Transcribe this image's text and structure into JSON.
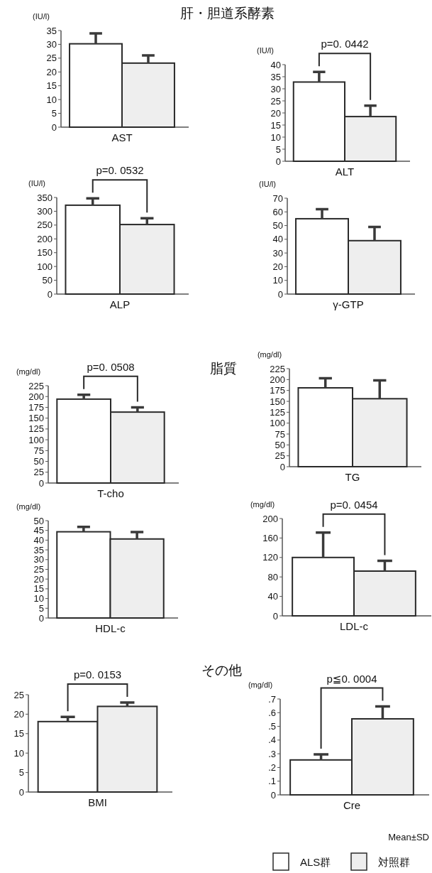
{
  "chart_data": [
    {
      "type": "bar",
      "title": "肝・胆道系酵素",
      "ylabel": "(IU/l)",
      "categories": [
        "AST"
      ],
      "ylim": [
        0,
        35
      ],
      "yticks": [
        0,
        5,
        10,
        15,
        20,
        25,
        30,
        35
      ],
      "series": [
        {
          "color": "#ffffff",
          "values": [
            30.2
          ],
          "errors": [
            3.8
          ]
        },
        {
          "color": "#eeeeee",
          "values": [
            23.2
          ],
          "errors": [
            2.8
          ]
        }
      ]
    },
    {
      "type": "bar",
      "ylabel": "(IU/l)",
      "categories": [
        "ALT"
      ],
      "ylim": [
        0,
        40
      ],
      "yticks": [
        0,
        5,
        10,
        15,
        20,
        25,
        30,
        35,
        40
      ],
      "annotations": [
        "p=0. 0442"
      ],
      "series": [
        {
          "color": "#ffffff",
          "values": [
            32.8
          ],
          "errors": [
            4.2
          ]
        },
        {
          "color": "#eeeeee",
          "values": [
            18.5
          ],
          "errors": [
            4.5
          ]
        }
      ]
    },
    {
      "type": "bar",
      "ylabel": "(IU/l)",
      "categories": [
        "ALP"
      ],
      "ylim": [
        0,
        350
      ],
      "yticks": [
        0,
        50,
        100,
        150,
        200,
        250,
        300,
        350
      ],
      "annotations": [
        "p=0. 0532"
      ],
      "series": [
        {
          "color": "#ffffff",
          "values": [
            322
          ],
          "errors": [
            25
          ]
        },
        {
          "color": "#eeeeee",
          "values": [
            252
          ],
          "errors": [
            23
          ]
        }
      ]
    },
    {
      "type": "bar",
      "ylabel": "(IU/l)",
      "categories": [
        "γ-GTP"
      ],
      "ylim": [
        0,
        70
      ],
      "yticks": [
        0,
        10,
        20,
        30,
        40,
        50,
        60,
        70
      ],
      "series": [
        {
          "color": "#ffffff",
          "values": [
            55
          ],
          "errors": [
            7
          ]
        },
        {
          "color": "#eeeeee",
          "values": [
            39
          ],
          "errors": [
            10
          ]
        }
      ]
    },
    {
      "type": "bar",
      "ylabel": "(mg/dl)",
      "categories": [
        "T-cho"
      ],
      "ylim": [
        0,
        225
      ],
      "yticks": [
        0,
        25,
        50,
        75,
        100,
        125,
        150,
        175,
        200,
        225
      ],
      "annotations": [
        "p=0. 0508"
      ],
      "series": [
        {
          "color": "#ffffff",
          "values": [
            194
          ],
          "errors": [
            10
          ]
        },
        {
          "color": "#eeeeee",
          "values": [
            164
          ],
          "errors": [
            11
          ]
        }
      ]
    },
    {
      "type": "bar",
      "title": "脂質",
      "ylabel": "(mg/dl)",
      "categories": [
        "TG"
      ],
      "ylim": [
        0,
        225
      ],
      "yticks": [
        0,
        25,
        50,
        75,
        100,
        125,
        150,
        175,
        200,
        225
      ],
      "series": [
        {
          "color": "#ffffff",
          "values": [
            181
          ],
          "errors": [
            22
          ]
        },
        {
          "color": "#eeeeee",
          "values": [
            156
          ],
          "errors": [
            42
          ]
        }
      ]
    },
    {
      "type": "bar",
      "ylabel": "(mg/dl)",
      "categories": [
        "HDL-c"
      ],
      "ylim": [
        0,
        50
      ],
      "yticks": [
        0,
        5,
        10,
        15,
        20,
        25,
        30,
        35,
        40,
        45,
        50
      ],
      "series": [
        {
          "color": "#ffffff",
          "values": [
            44.3
          ],
          "errors": [
            2.5
          ]
        },
        {
          "color": "#eeeeee",
          "values": [
            40.6
          ],
          "errors": [
            3.6
          ]
        }
      ]
    },
    {
      "type": "bar",
      "ylabel": "(mg/dl)",
      "categories": [
        "LDL-c"
      ],
      "ylim": [
        0,
        200
      ],
      "yticks": [
        0,
        40,
        80,
        120,
        160,
        200
      ],
      "annotations": [
        "p=0. 0454"
      ],
      "series": [
        {
          "color": "#ffffff",
          "values": [
            120
          ],
          "errors": [
            51
          ]
        },
        {
          "color": "#eeeeee",
          "values": [
            92
          ],
          "errors": [
            21
          ]
        }
      ]
    },
    {
      "type": "bar",
      "categories": [
        "BMI"
      ],
      "ylim": [
        0,
        25
      ],
      "yticks": [
        0,
        5,
        10,
        15,
        20,
        25
      ],
      "annotations": [
        "p=0. 0153"
      ],
      "series": [
        {
          "color": "#ffffff",
          "values": [
            18.1
          ],
          "errors": [
            1.2
          ]
        },
        {
          "color": "#eeeeee",
          "values": [
            22
          ],
          "errors": [
            1.0
          ]
        }
      ]
    },
    {
      "type": "bar",
      "title": "その他",
      "ylabel": "(mg/dl)",
      "categories": [
        "Cre"
      ],
      "ylim": [
        0,
        0.7
      ],
      "yticks": [
        0,
        {
          "value": 0.1,
          "label": ".1"
        },
        {
          "value": 0.2,
          "label": ".2"
        },
        {
          "value": 0.3,
          "label": ".3"
        },
        {
          "value": 0.4,
          "label": ".4"
        },
        {
          "value": 0.5,
          "label": ".5"
        },
        {
          "value": 0.6,
          "label": ".6"
        },
        {
          "value": 0.7,
          "label": ".7"
        }
      ],
      "annotations": [
        "p≦0. 0004"
      ],
      "legend": "bottom",
      "legend_title": "Mean±SD",
      "series": [
        {
          "name": "ALS群",
          "color": "#ffffff",
          "values": [
            0.255
          ],
          "errors": [
            0.04
          ]
        },
        {
          "name": "対照群",
          "color": "#eeeeee",
          "values": [
            0.555
          ],
          "errors": [
            0.09
          ]
        }
      ]
    }
  ]
}
